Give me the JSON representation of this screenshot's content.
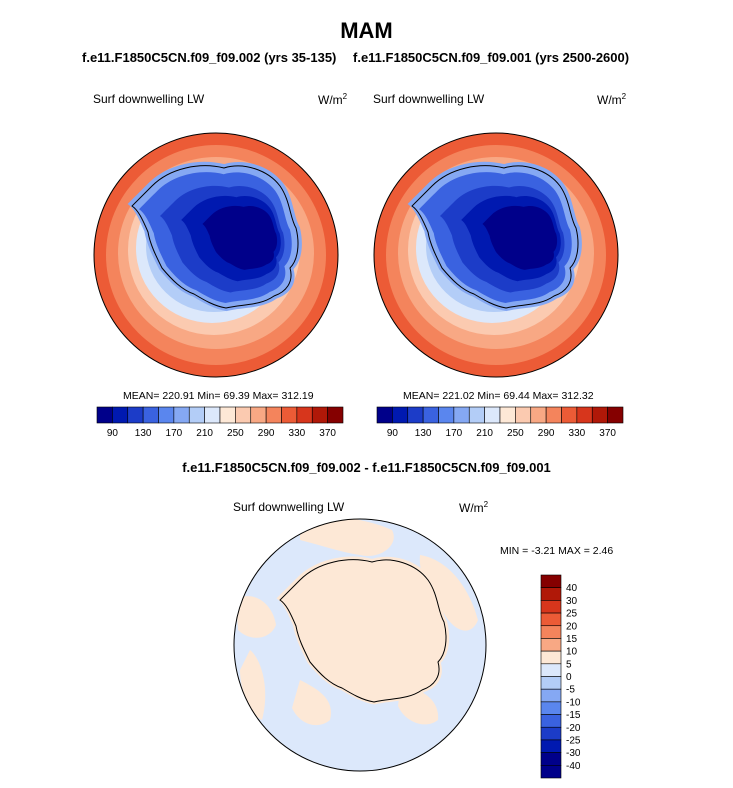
{
  "title": "MAM",
  "left_panel": {
    "case": "f.e11.F1850C5CN.f09_f09.002 (yrs 35-135)",
    "variable": "Surf downwelling LW",
    "units_base": "W/m",
    "units_exp": "2",
    "stats": "MEAN= 220.91  Min=  69.39  Max= 312.19"
  },
  "right_panel": {
    "case": "f.e11.F1850C5CN.f09_f09.001 (yrs 2500-2600)",
    "variable": "Surf downwelling LW",
    "units_base": "W/m",
    "units_exp": "2",
    "stats": "MEAN= 221.02  Min=  69.44  Max= 312.32"
  },
  "colorbar_labels": [
    "90",
    "130",
    "170",
    "210",
    "250",
    "290",
    "330",
    "370"
  ],
  "colorbar_colors": [
    "#00008a",
    "#0019b0",
    "#1c3cc8",
    "#3a62e0",
    "#5a86ee",
    "#85a8f3",
    "#b3cdf7",
    "#dce8fb",
    "#fde8d6",
    "#fbcab0",
    "#f8a884",
    "#f4845c",
    "#ec5b36",
    "#d7361c",
    "#b01808",
    "#850000"
  ],
  "diff_panel": {
    "title": "f.e11.F1850C5CN.f09_f09.002 - f.e11.F1850C5CN.f09_f09.001",
    "variable": "Surf downwelling LW",
    "units_base": "W/m",
    "units_exp": "2",
    "minmax": "MIN =  -3.21 MAX =   2.46",
    "colorbar_labels": [
      "40",
      "30",
      "25",
      "20",
      "15",
      "10",
      "5",
      "0",
      "-5",
      "-10",
      "-15",
      "-20",
      "-25",
      "-30",
      "-40"
    ],
    "colorbar_colors": [
      "#850000",
      "#b01808",
      "#d7361c",
      "#ec5b36",
      "#f4845c",
      "#f8a884",
      "#fde8d6",
      "#dce8fb",
      "#b3cdf7",
      "#85a8f3",
      "#5a86ee",
      "#3a62e0",
      "#1c3cc8",
      "#0019b0",
      "#00008a"
    ]
  }
}
